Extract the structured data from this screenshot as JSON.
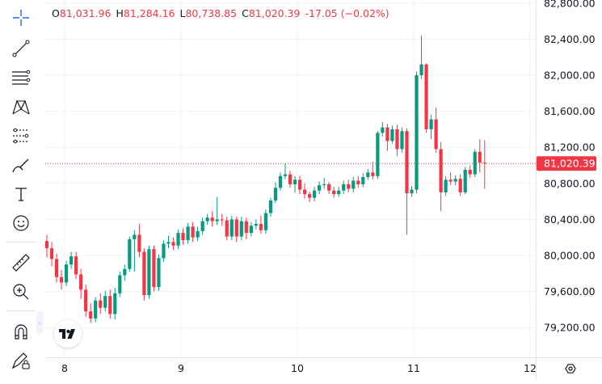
{
  "ohlc": {
    "open_label": "O",
    "open": "81,031.96",
    "high_label": "H",
    "high": "81,284.16",
    "low_label": "L",
    "low": "80,738.85",
    "close_label": "C",
    "close": "81,020.39",
    "change": "-17.05 (−0.02%)"
  },
  "price_scale": {
    "labels": [
      "82,800.00",
      "82,400.00",
      "82,000.00",
      "81,600.00",
      "81,200.00",
      "80,800.00",
      "80,400.00",
      "80,000.00",
      "79,600.00",
      "79,200.00"
    ],
    "current_price": "81,020.39"
  },
  "time_scale": {
    "labels": [
      "8",
      "9",
      "10",
      "11",
      "12"
    ]
  },
  "toolbar": {
    "tools": [
      "crosshair-icon",
      "trend-line-icon",
      "fib-retracement-icon",
      "pattern-icon",
      "prediction-icon",
      "brush-icon",
      "text-icon",
      "emoji-icon",
      "ruler-icon",
      "zoom-in-icon",
      "magnet-icon",
      "lock-drawings-icon"
    ]
  },
  "colors": {
    "up": "#089981",
    "down": "#f23645",
    "accent": "#2962ff",
    "grid": "#f0f3fa",
    "text": "#131722"
  },
  "chart_data": {
    "type": "candlestick",
    "ylim": [
      79000,
      82900
    ],
    "y_ticks": [
      79200,
      79600,
      80000,
      80400,
      80800,
      81200,
      81600,
      82000,
      82400,
      82800
    ],
    "x_ticks": [
      "8",
      "9",
      "10",
      "11",
      "12"
    ],
    "last_price": 81020.39,
    "candles": [
      [
        80160,
        80080,
        80230,
        79980
      ],
      [
        80080,
        79960,
        80150,
        79880
      ],
      [
        79960,
        79760,
        80020,
        79700
      ],
      [
        79760,
        79700,
        79840,
        79620
      ],
      [
        79700,
        79900,
        79940,
        79660
      ],
      [
        79900,
        79990,
        80040,
        79850
      ],
      [
        79990,
        79790,
        80040,
        79740
      ],
      [
        79790,
        79620,
        79850,
        79520
      ],
      [
        79620,
        79380,
        79680,
        79320
      ],
      [
        79380,
        79300,
        79470,
        79250
      ],
      [
        79300,
        79500,
        79540,
        79260
      ],
      [
        79500,
        79420,
        79580,
        79350
      ],
      [
        79420,
        79550,
        79610,
        79380
      ],
      [
        79550,
        79350,
        79620,
        79300
      ],
      [
        79350,
        79580,
        79640,
        79290
      ],
      [
        79580,
        79780,
        79820,
        79540
      ],
      [
        79780,
        79850,
        79900,
        79720
      ],
      [
        79850,
        80180,
        80210,
        79820
      ],
      [
        80180,
        80230,
        80280,
        79820
      ],
      [
        80230,
        80040,
        80350,
        79980
      ],
      [
        80040,
        79560,
        80080,
        79500
      ],
      [
        79560,
        80070,
        80110,
        79520
      ],
      [
        80070,
        79650,
        80110,
        79600
      ],
      [
        79650,
        79970,
        80010,
        79610
      ],
      [
        79970,
        80130,
        80170,
        79930
      ],
      [
        80130,
        80150,
        80220,
        80080
      ],
      [
        80150,
        80110,
        80200,
        80060
      ],
      [
        80110,
        80250,
        80290,
        80070
      ],
      [
        80250,
        80170,
        80300,
        80120
      ],
      [
        80170,
        80320,
        80360,
        80130
      ],
      [
        80320,
        80200,
        80370,
        80150
      ],
      [
        80200,
        80270,
        80320,
        80160
      ],
      [
        80270,
        80380,
        80420,
        80230
      ],
      [
        80380,
        80420,
        80460,
        80340
      ],
      [
        80420,
        80380,
        80490,
        80320
      ],
      [
        80380,
        80400,
        80650,
        80340
      ],
      [
        80400,
        80390,
        80460,
        80330
      ],
      [
        80390,
        80210,
        80430,
        80170
      ],
      [
        80210,
        80400,
        80440,
        80170
      ],
      [
        80400,
        80210,
        80430,
        80150
      ],
      [
        80210,
        80380,
        80430,
        80170
      ],
      [
        80380,
        80250,
        80420,
        80180
      ],
      [
        80250,
        80330,
        80370,
        80210
      ],
      [
        80330,
        80350,
        80400,
        80290
      ],
      [
        80350,
        80280,
        80440,
        80240
      ],
      [
        80280,
        80470,
        80510,
        80240
      ],
      [
        80470,
        80610,
        80640,
        80430
      ],
      [
        80610,
        80750,
        80810,
        80580
      ],
      [
        80750,
        80880,
        80920,
        80720
      ],
      [
        80880,
        80900,
        81020,
        80850
      ],
      [
        80900,
        80790,
        80940,
        80750
      ],
      [
        80790,
        80840,
        80880,
        80700
      ],
      [
        80840,
        80730,
        80880,
        80680
      ],
      [
        80730,
        80680,
        80800,
        80630
      ],
      [
        80680,
        80640,
        80710,
        80590
      ],
      [
        80640,
        80720,
        80760,
        80600
      ],
      [
        80720,
        80780,
        80820,
        80680
      ],
      [
        80780,
        80790,
        80860,
        80740
      ],
      [
        80790,
        80720,
        80810,
        80680
      ],
      [
        80720,
        80680,
        80760,
        80640
      ],
      [
        80680,
        80720,
        80760,
        80650
      ],
      [
        80720,
        80790,
        80830,
        80680
      ],
      [
        80790,
        80740,
        80840,
        80700
      ],
      [
        80740,
        80830,
        80870,
        80700
      ],
      [
        80830,
        80790,
        80880,
        80750
      ],
      [
        80790,
        80870,
        80910,
        80760
      ],
      [
        80870,
        80920,
        80960,
        80840
      ],
      [
        80920,
        80880,
        81040,
        80840
      ],
      [
        80880,
        81360,
        81380,
        80850
      ],
      [
        81360,
        81420,
        81480,
        81320
      ],
      [
        81420,
        81270,
        81460,
        81160
      ],
      [
        81270,
        81400,
        81440,
        81240
      ],
      [
        81400,
        81180,
        81450,
        81100
      ],
      [
        81180,
        81380,
        81420,
        81140
      ],
      [
        81380,
        80690,
        81410,
        80230
      ],
      [
        80690,
        80730,
        80770,
        80650
      ],
      [
        80730,
        82000,
        82040,
        80690
      ],
      [
        82000,
        82120,
        82440,
        81960
      ],
      [
        82120,
        81400,
        82130,
        81360
      ],
      [
        81400,
        81510,
        81560,
        81290
      ],
      [
        81510,
        81180,
        81640,
        81140
      ],
      [
        81180,
        80700,
        81260,
        80490
      ],
      [
        80700,
        80840,
        80880,
        80660
      ],
      [
        80840,
        80820,
        80920,
        80780
      ],
      [
        80820,
        80850,
        80890,
        80780
      ],
      [
        80850,
        80700,
        80900,
        80660
      ],
      [
        80700,
        80950,
        80980,
        80680
      ],
      [
        80950,
        80900,
        81000,
        80860
      ],
      [
        80900,
        81150,
        81180,
        80870
      ],
      [
        81150,
        81030,
        81290,
        80920
      ],
      [
        81030,
        81020,
        81280,
        80740
      ]
    ]
  }
}
